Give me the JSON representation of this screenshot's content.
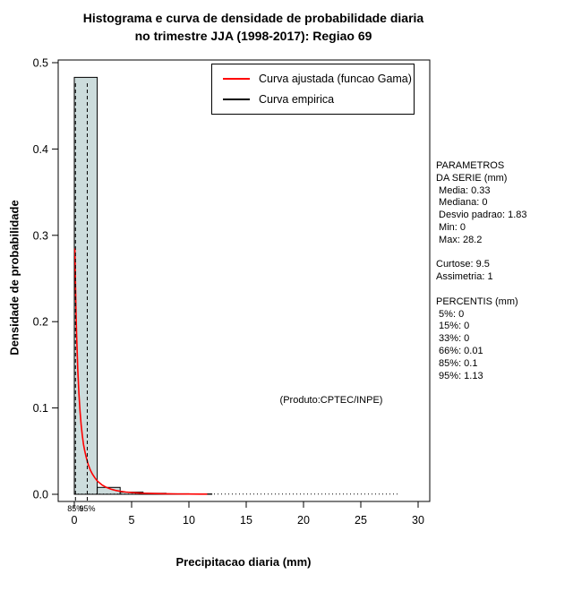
{
  "title": {
    "line1": "Histograma e curva de densidade de probabilidade diaria",
    "line2": "no trimestre JJA (1998-2017): Regiao 69"
  },
  "axes": {
    "x": {
      "label": "Precipitacao diaria (mm)",
      "ticks": [
        0,
        5,
        10,
        15,
        20,
        25,
        30
      ],
      "min": -1.4,
      "max": 31
    },
    "y": {
      "label": "Densidade de probabilidade",
      "ticks": [
        0,
        0.1,
        0.2,
        0.3,
        0.4,
        0.5
      ],
      "tick_labels": [
        "0.0",
        "0.1",
        "0.2",
        "0.3",
        "0.4",
        "0.5"
      ],
      "min": 0,
      "max": 0.5
    }
  },
  "legend": {
    "items": [
      {
        "label": "Curva ajustada (funcao Gama)",
        "color": "#ff0000"
      },
      {
        "label": "Curva empirica",
        "color": "#000000"
      }
    ]
  },
  "annotation": "(Produto:CPTEC/INPE)",
  "percentile_lines": [
    {
      "label": "85%",
      "x": 0.1
    },
    {
      "label": "95%",
      "x": 1.13
    }
  ],
  "stats_panel": {
    "lines": [
      "PARAMETROS",
      "DA SERIE (mm)",
      " Media: 0.33",
      " Mediana: 0",
      " Desvio padrao: 1.83",
      " Min: 0",
      " Max: 28.2",
      "",
      "Curtose: 9.5",
      "Assimetria: 1",
      "",
      "PERCENTIS (mm)",
      " 5%: 0",
      " 15%: 0",
      " 33%: 0",
      " 66%: 0.01",
      " 85%: 0.1",
      " 95%: 1.13"
    ]
  },
  "chart_data": {
    "type": "histogram+line",
    "title": "Histograma e curva de densidade de probabilidade diaria no trimestre JJA (1998-2017): Regiao 69",
    "xlabel": "Precipitacao diaria (mm)",
    "ylabel": "Densidade de probabilidade",
    "xlim": [
      -1.4,
      31
    ],
    "ylim": [
      0,
      0.5
    ],
    "histogram": {
      "fill": "#ccdcdc",
      "stroke": "#000000",
      "bins": [
        {
          "x0": 0,
          "x1": 2,
          "density": 0.483
        },
        {
          "x0": 2,
          "x1": 4,
          "density": 0.008
        },
        {
          "x0": 4,
          "x1": 6,
          "density": 0.0025
        },
        {
          "x0": 6,
          "x1": 8,
          "density": 0.0012
        },
        {
          "x0": 8,
          "x1": 10,
          "density": 0.0006
        },
        {
          "x0": 10,
          "x1": 12,
          "density": 0.0004
        }
      ]
    },
    "gamma_curve": {
      "name": "Curva ajustada (funcao Gama)",
      "color": "#ff0000",
      "points": [
        [
          0.05,
          0.285
        ],
        [
          0.1,
          0.245
        ],
        [
          0.15,
          0.21
        ],
        [
          0.2,
          0.185
        ],
        [
          0.3,
          0.145
        ],
        [
          0.4,
          0.117
        ],
        [
          0.5,
          0.096
        ],
        [
          0.6,
          0.08
        ],
        [
          0.7,
          0.068
        ],
        [
          0.8,
          0.058
        ],
        [
          0.9,
          0.051
        ],
        [
          1.0,
          0.045
        ],
        [
          1.2,
          0.035
        ],
        [
          1.4,
          0.028
        ],
        [
          1.6,
          0.023
        ],
        [
          1.8,
          0.019
        ],
        [
          2.0,
          0.0155
        ],
        [
          2.4,
          0.011
        ],
        [
          2.8,
          0.008
        ],
        [
          3.2,
          0.006
        ],
        [
          3.6,
          0.0045
        ],
        [
          4.0,
          0.0035
        ],
        [
          4.5,
          0.0026
        ],
        [
          5.0,
          0.002
        ],
        [
          6.0,
          0.0012
        ],
        [
          7.0,
          0.0008
        ],
        [
          8.0,
          0.00055
        ],
        [
          9.0,
          0.0004
        ],
        [
          10.0,
          0.0003
        ],
        [
          11.0,
          0.00022
        ],
        [
          11.6,
          0.0002
        ]
      ]
    },
    "empirical_zero_line": {
      "name": "Curva empirica",
      "x0": 0,
      "x1": 28.2,
      "y": 0.0003,
      "style": "dotted",
      "color": "#000000"
    }
  }
}
